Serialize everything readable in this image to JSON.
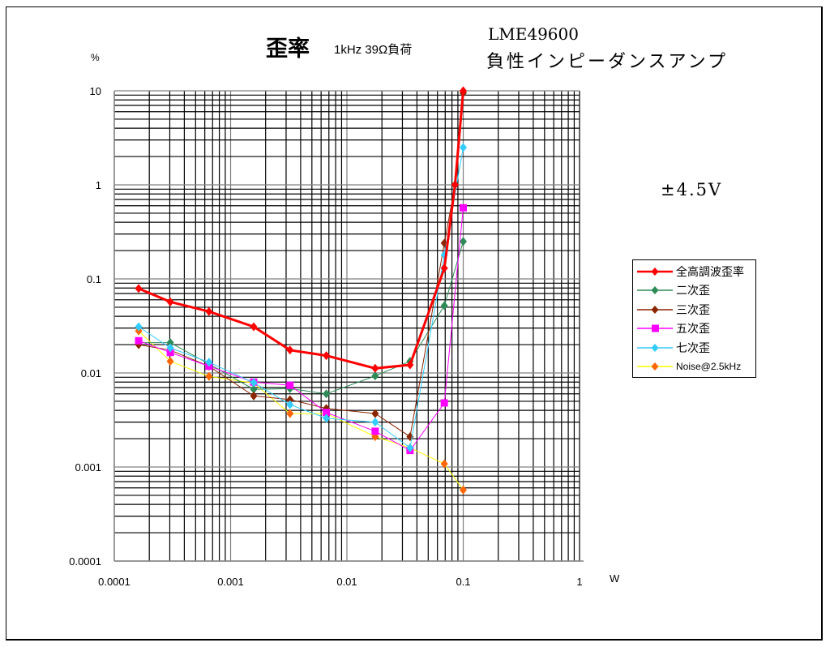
{
  "title": {
    "main": "歪率",
    "condition": "1kHz 39Ω負荷",
    "device": "LME49600",
    "circuit": "負性インピーダンスアンプ"
  },
  "annotation": "±4.5V",
  "axes": {
    "y_unit": "%",
    "x_unit": "W"
  },
  "chart_data": {
    "type": "line",
    "title": "歪率 1kHz 39Ω負荷 LME49600 負性インピーダンスアンプ",
    "xlabel": "W",
    "ylabel": "%",
    "xscale": "log",
    "yscale": "log",
    "xlim": [
      0.0001,
      1
    ],
    "ylim": [
      0.0001,
      10
    ],
    "x_ticks": [
      "0.0001",
      "0.001",
      "0.01",
      "0.1",
      "1"
    ],
    "y_ticks": [
      "0.0001",
      "0.001",
      "0.01",
      "0.1",
      "1",
      "10"
    ],
    "grid": true,
    "legend_position": "right",
    "annotation": "±4.5V",
    "series": [
      {
        "name": "全高調波歪率",
        "color": "#ff0000",
        "marker": "diamond",
        "width": 3,
        "points": [
          [
            0.000162,
            0.079
          ],
          [
            0.000303,
            0.057
          ],
          [
            0.000652,
            0.045
          ],
          [
            0.00158,
            0.031
          ],
          [
            0.00324,
            0.0175
          ],
          [
            0.00665,
            0.0153
          ],
          [
            0.0175,
            0.0112
          ],
          [
            0.0349,
            0.0122
          ],
          [
            0.0688,
            0.13
          ],
          [
            0.085,
            1.0
          ],
          [
            0.1,
            10
          ]
        ]
      },
      {
        "name": "二次歪",
        "color": "#2e8b57",
        "marker": "diamond",
        "width": 1,
        "points": [
          [
            0.000162,
            0.021
          ],
          [
            0.000303,
            0.021
          ],
          [
            0.000652,
            0.0125
          ],
          [
            0.00158,
            0.0067
          ],
          [
            0.00324,
            0.0068
          ],
          [
            0.00665,
            0.006
          ],
          [
            0.0175,
            0.0093
          ],
          [
            0.0349,
            0.0133
          ],
          [
            0.0688,
            0.052
          ],
          [
            0.1,
            0.25
          ]
        ]
      },
      {
        "name": "三次歪",
        "color": "#8b2500",
        "marker": "diamond",
        "width": 1,
        "points": [
          [
            0.000162,
            0.02
          ],
          [
            0.000303,
            0.0175
          ],
          [
            0.000652,
            0.0118
          ],
          [
            0.00158,
            0.0057
          ],
          [
            0.00324,
            0.0052
          ],
          [
            0.00665,
            0.0042
          ],
          [
            0.0175,
            0.0037
          ],
          [
            0.0349,
            0.0021
          ],
          [
            0.0688,
            0.24
          ],
          [
            0.085,
            1.0
          ],
          [
            0.1,
            9.5
          ]
        ]
      },
      {
        "name": "五次歪",
        "color": "#ff00ff",
        "marker": "square",
        "width": 1,
        "points": [
          [
            0.000162,
            0.022
          ],
          [
            0.000303,
            0.0165
          ],
          [
            0.000652,
            0.0118
          ],
          [
            0.00158,
            0.008
          ],
          [
            0.00324,
            0.0074
          ],
          [
            0.00665,
            0.0038
          ],
          [
            0.0175,
            0.0024
          ],
          [
            0.0349,
            0.0015
          ],
          [
            0.0688,
            0.0048
          ],
          [
            0.1,
            0.57
          ]
        ]
      },
      {
        "name": "七次歪",
        "color": "#33ccff",
        "marker": "diamond",
        "width": 1,
        "points": [
          [
            0.000162,
            0.031
          ],
          [
            0.000303,
            0.0185
          ],
          [
            0.000652,
            0.013
          ],
          [
            0.00158,
            0.0079
          ],
          [
            0.00324,
            0.0046
          ],
          [
            0.00665,
            0.0033
          ],
          [
            0.0175,
            0.003
          ],
          [
            0.0349,
            0.0016
          ],
          [
            0.0688,
            0.18
          ],
          [
            0.1,
            2.5
          ]
        ]
      },
      {
        "name": "Noise@2.5kHz",
        "color": "#ffff00",
        "marker_color": "#ff6600",
        "marker": "diamond",
        "width": 1,
        "points": [
          [
            0.000162,
            0.028
          ],
          [
            0.000303,
            0.0133
          ],
          [
            0.000652,
            0.0092
          ],
          [
            0.00158,
            0.0078
          ],
          [
            0.00324,
            0.0037
          ],
          [
            0.00665,
            0.0037
          ],
          [
            0.0175,
            0.0021
          ],
          [
            0.0349,
            0.0016
          ],
          [
            0.0688,
            0.00108
          ],
          [
            0.1,
            0.00057
          ]
        ]
      }
    ]
  },
  "legend": {
    "items": [
      {
        "label": "全高調波歪率"
      },
      {
        "label": "二次歪"
      },
      {
        "label": "三次歪"
      },
      {
        "label": "五次歪"
      },
      {
        "label": "七次歪"
      },
      {
        "label": "Noise@2.5kHz"
      }
    ]
  }
}
